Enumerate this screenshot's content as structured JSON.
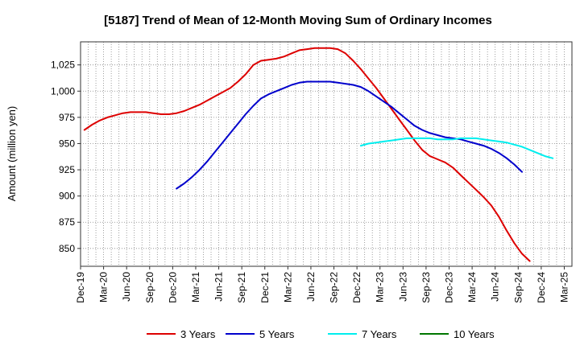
{
  "chart_data": {
    "type": "line",
    "title": "[5187]  Trend of Mean of 12-Month Moving Sum of Ordinary Incomes",
    "xlabel": "",
    "ylabel": "Amount (million yen)",
    "ylim": [
      833,
      1047
    ],
    "yticks": [
      850,
      875,
      900,
      925,
      950,
      975,
      1000,
      1025
    ],
    "ytick_labels": [
      "850",
      "875",
      "900",
      "925",
      "950",
      "975",
      "1,000",
      "1,025"
    ],
    "xticks": [
      "Dec-19",
      "Mar-20",
      "Jun-20",
      "Sep-20",
      "Dec-20",
      "Mar-21",
      "Jun-21",
      "Sep-21",
      "Dec-21",
      "Mar-22",
      "Jun-22",
      "Sep-22",
      "Dec-22",
      "Mar-23",
      "Jun-23",
      "Sep-23",
      "Dec-23",
      "Mar-24",
      "Jun-24",
      "Sep-24",
      "Dec-24",
      "Mar-25"
    ],
    "x_months": [
      "2019-12",
      "2020-01",
      "2020-02",
      "2020-03",
      "2020-04",
      "2020-05",
      "2020-06",
      "2020-07",
      "2020-08",
      "2020-09",
      "2020-10",
      "2020-11",
      "2020-12",
      "2021-01",
      "2021-02",
      "2021-03",
      "2021-04",
      "2021-05",
      "2021-06",
      "2021-07",
      "2021-08",
      "2021-09",
      "2021-10",
      "2021-11",
      "2021-12",
      "2022-01",
      "2022-02",
      "2022-03",
      "2022-04",
      "2022-05",
      "2022-06",
      "2022-07",
      "2022-08",
      "2022-09",
      "2022-10",
      "2022-11",
      "2022-12",
      "2023-01",
      "2023-02",
      "2023-03",
      "2023-04",
      "2023-05",
      "2023-06",
      "2023-07",
      "2023-08",
      "2023-09",
      "2023-10",
      "2023-11",
      "2023-12",
      "2024-01",
      "2024-02",
      "2024-03",
      "2024-04",
      "2024-05",
      "2024-06",
      "2024-07",
      "2024-08",
      "2024-09",
      "2024-10",
      "2024-11",
      "2024-12"
    ],
    "grid": true,
    "legend_position": "bottom",
    "series": [
      {
        "name": "3 Years",
        "color": "#dd0000",
        "start_index": 0,
        "values": [
          963,
          968,
          972,
          975,
          977,
          979,
          980,
          980,
          980,
          979,
          978,
          978,
          979,
          981,
          984,
          987,
          991,
          995,
          999,
          1003,
          1009,
          1016,
          1025,
          1029,
          1030,
          1031,
          1033,
          1036,
          1039,
          1040,
          1041,
          1041,
          1041,
          1040,
          1036,
          1029,
          1021,
          1012,
          1003,
          993,
          983,
          973,
          963,
          953,
          944,
          938,
          935,
          932,
          927,
          920,
          913,
          906,
          899,
          891,
          880,
          867,
          855,
          845,
          838
        ]
      },
      {
        "name": "5 Years",
        "color": "#0000cc",
        "start_index": 12,
        "values": [
          907,
          912,
          918,
          925,
          933,
          942,
          951,
          960,
          969,
          978,
          986,
          993,
          997,
          1000,
          1003,
          1006,
          1008,
          1009,
          1009,
          1009,
          1009,
          1008,
          1007,
          1006,
          1004,
          1000,
          995,
          990,
          985,
          979,
          973,
          967,
          963,
          960,
          958,
          956,
          955,
          954,
          952,
          950,
          948,
          945,
          941,
          936,
          930,
          923
        ]
      },
      {
        "name": "7 Years",
        "color": "#00eeee",
        "start_index": 36,
        "values": [
          948,
          950,
          951,
          952,
          953,
          954,
          955,
          955,
          955,
          955,
          954,
          954,
          954,
          955,
          955,
          955,
          954,
          953,
          952,
          951,
          949,
          947,
          944,
          941,
          938,
          936
        ]
      },
      {
        "name": "10 Years",
        "color": "#007700",
        "start_index": 0,
        "values": []
      }
    ]
  }
}
